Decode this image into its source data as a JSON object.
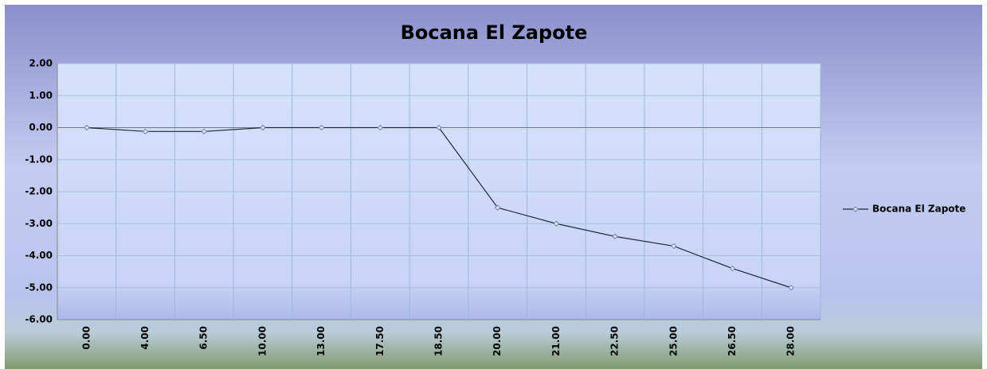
{
  "chart_data": {
    "type": "line",
    "title": "Bocana El Zapote",
    "categories": [
      "0.00",
      "4.00",
      "6.50",
      "10.00",
      "13.00",
      "17.50",
      "18.50",
      "20.00",
      "21.00",
      "22.50",
      "25.00",
      "26.50",
      "28.00"
    ],
    "series": [
      {
        "name": "Bocana El Zapote",
        "color": "#1f2a3a",
        "values": [
          0,
          -0.12,
          -0.12,
          0,
          0,
          0,
          0,
          -2.5,
          -3.0,
          -3.4,
          -3.7,
          -4.4,
          -5.0
        ]
      }
    ],
    "ylim": [
      -6,
      2
    ],
    "yticks": [
      {
        "value": -6,
        "label": "-6.00"
      },
      {
        "value": -5,
        "label": "-5.00"
      },
      {
        "value": -4,
        "label": "-4.00"
      },
      {
        "value": -3,
        "label": "-3.00"
      },
      {
        "value": -2,
        "label": "-2.00"
      },
      {
        "value": -1,
        "label": "-1.00"
      },
      {
        "value": 0,
        "label": "0.00"
      },
      {
        "value": 1,
        "label": "1.00"
      },
      {
        "value": 2,
        "label": "2.00"
      }
    ],
    "grid": true,
    "legend": "right"
  }
}
